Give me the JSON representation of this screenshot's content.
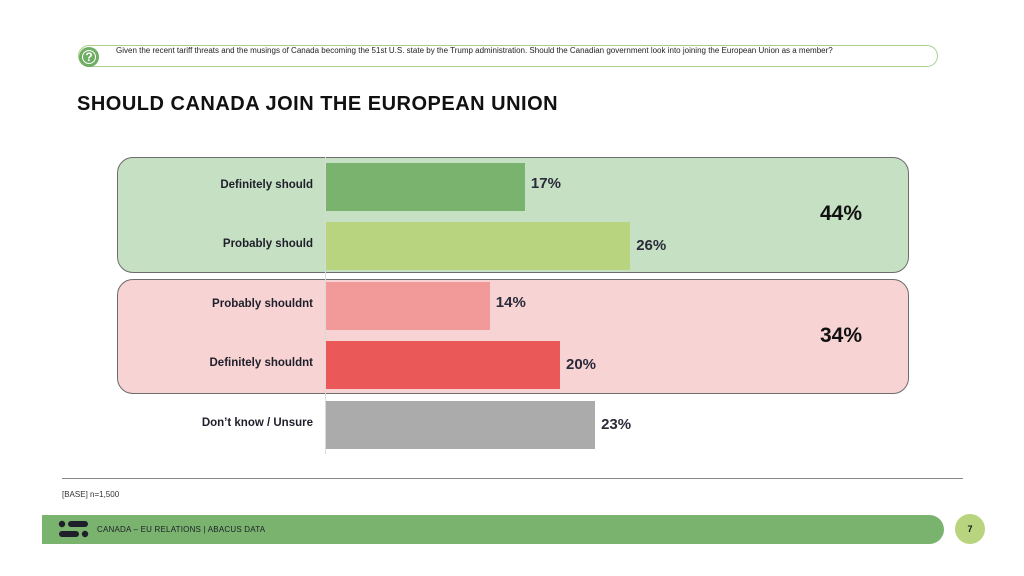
{
  "question": {
    "icon": "question-chat-icon",
    "text": "Given the recent tariff threats and the musings of Canada becoming the 51st U.S. state by the Trump administration. Should the Canadian government look into joining the European Union as a member?"
  },
  "chart_data": {
    "type": "bar",
    "orientation": "horizontal",
    "title": "SHOULD CANADA JOIN THE EUROPEAN UNION",
    "categories": [
      "Definitely should",
      "Probably should",
      "Probably shouldnt",
      "Definitely shouldnt",
      "Don’t know / Unsure"
    ],
    "values": [
      17,
      26,
      14,
      20,
      23
    ],
    "value_labels": [
      "17%",
      "26%",
      "14%",
      "20%",
      "23%"
    ],
    "colors": [
      "#79b36d",
      "#b9d47e",
      "#f19a99",
      "#ea5858",
      "#ababab"
    ],
    "groups": [
      {
        "name": "should",
        "members": [
          "Definitely should",
          "Probably should"
        ],
        "total": 44,
        "total_label": "44%",
        "fill": "#c5e0c2"
      },
      {
        "name": "shouldnt",
        "members": [
          "Probably shouldnt",
          "Definitely shouldnt"
        ],
        "total": 34,
        "total_label": "34%",
        "fill": "#f7d3d3"
      }
    ],
    "xlabel": "",
    "ylabel": "",
    "unit": "%",
    "grid": false
  },
  "footer": {
    "base": "[BASE] n=1,500",
    "label": "CANADA – EU RELATIONS  |  ABACUS DATA",
    "page_number": "7",
    "logo_icon": "abacus-logo-icon"
  }
}
